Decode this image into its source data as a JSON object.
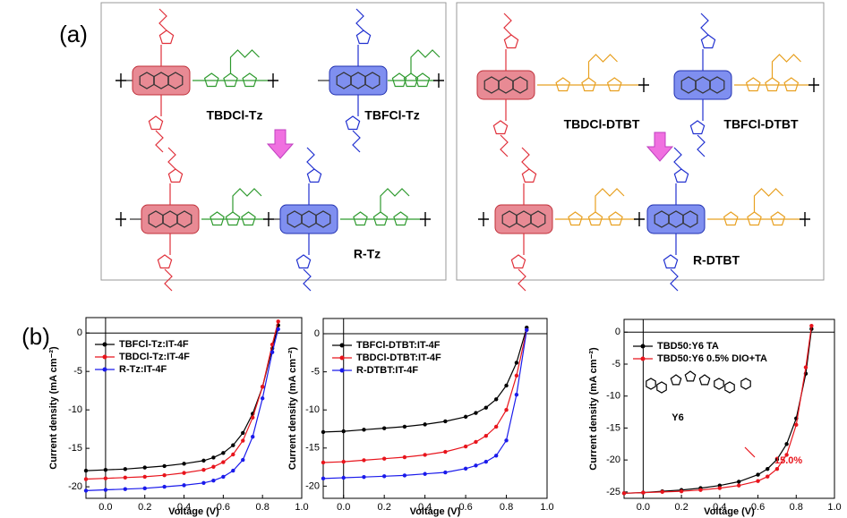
{
  "panel_labels": [
    "(a)",
    "(b)"
  ],
  "structures": [
    {
      "name": "TBDCl-Tz"
    },
    {
      "name": "TBFCl-Tz"
    },
    {
      "name": "R-Tz"
    },
    {
      "name": "TBDCl-DTBT"
    },
    {
      "name": "TBFCl-DTBT"
    },
    {
      "name": "R-DTBT"
    }
  ],
  "chart_data": [
    {
      "type": "line",
      "xlabel": "Voltage (V)",
      "ylabel": "Current density (mA cm⁻²)",
      "xlim": [
        -0.1,
        1.0
      ],
      "xticks": [
        {
          "value": 0,
          "label": "0.0"
        },
        0.2,
        0.4,
        0.6,
        0.8,
        {
          "value": 1,
          "label": "1.0"
        }
      ],
      "ylim": [
        -21.5,
        2
      ],
      "yticks": [
        0,
        -5,
        -10,
        -15,
        -20
      ],
      "zero_lines": true,
      "legend": "upper left",
      "x": [
        -0.1,
        0,
        0.1,
        0.2,
        0.3,
        0.4,
        0.5,
        0.55,
        0.6,
        0.65,
        0.7,
        0.75,
        0.8,
        0.85,
        0.88
      ],
      "series": [
        {
          "name": "TBFCl-Tz:IT-4F",
          "color": "#000000",
          "values": [
            -17.9,
            -17.8,
            -17.7,
            -17.5,
            -17.3,
            -17.0,
            -16.6,
            -16.2,
            -15.6,
            -14.6,
            -13.0,
            -10.5,
            -7.0,
            -2.0,
            1.0
          ]
        },
        {
          "name": "TBDCl-Tz:IT-4F",
          "color": "#e8141c",
          "values": [
            -19.0,
            -18.9,
            -18.8,
            -18.7,
            -18.5,
            -18.2,
            -17.8,
            -17.4,
            -16.8,
            -15.8,
            -14.0,
            -11.0,
            -7.0,
            -1.5,
            1.5
          ]
        },
        {
          "name": "R-Tz:IT-4F",
          "color": "#1a1aeb",
          "values": [
            -20.5,
            -20.4,
            -20.3,
            -20.2,
            -20.0,
            -19.8,
            -19.5,
            -19.2,
            -18.7,
            -17.9,
            -16.5,
            -13.5,
            -8.5,
            -2.5,
            0.5
          ]
        }
      ]
    },
    {
      "type": "line",
      "xlabel": "Voltage (V)",
      "ylabel": "Current density (mA cm⁻²)",
      "xlim": [
        -0.1,
        1.0
      ],
      "xticks": [
        {
          "value": 0,
          "label": "0.0"
        },
        0.2,
        0.4,
        0.6,
        0.8,
        {
          "value": 1,
          "label": "1.0"
        }
      ],
      "ylim": [
        -21.6,
        2
      ],
      "yticks": [
        0,
        -5,
        -10,
        -15,
        -20
      ],
      "zero_lines": true,
      "legend": "upper left",
      "x": [
        -0.1,
        0,
        0.1,
        0.2,
        0.3,
        0.4,
        0.5,
        0.6,
        0.65,
        0.7,
        0.75,
        0.8,
        0.85,
        0.9
      ],
      "series": [
        {
          "name": "TBFCl-DTBT:IT-4F",
          "color": "#000000",
          "values": [
            -12.9,
            -12.8,
            -12.6,
            -12.4,
            -12.2,
            -11.9,
            -11.5,
            -10.9,
            -10.4,
            -9.7,
            -8.6,
            -6.8,
            -3.8,
            0.8
          ]
        },
        {
          "name": "TBDCl-DTBT:IT-4F",
          "color": "#e8141c",
          "values": [
            -16.9,
            -16.8,
            -16.6,
            -16.4,
            -16.2,
            -15.9,
            -15.5,
            -14.8,
            -14.2,
            -13.4,
            -12.2,
            -10.0,
            -5.5,
            0.5
          ]
        },
        {
          "name": "R-DTBT:IT-4F",
          "color": "#1a1aeb",
          "values": [
            -19.0,
            -18.9,
            -18.8,
            -18.7,
            -18.6,
            -18.4,
            -18.2,
            -17.7,
            -17.3,
            -16.8,
            -16.0,
            -14.0,
            -8.0,
            0.5
          ]
        }
      ]
    },
    {
      "type": "line",
      "xlabel": "Voltage (V)",
      "ylabel": "Current density (mA cm⁻²)",
      "xlim": [
        -0.1,
        1.0
      ],
      "xticks": [
        {
          "value": 0,
          "label": "0.0"
        },
        0.2,
        0.4,
        0.6,
        0.8,
        {
          "value": 1,
          "label": "1.0"
        }
      ],
      "ylim": [
        -26,
        2
      ],
      "yticks": [
        0,
        -5,
        -10,
        -15,
        -20,
        -25
      ],
      "zero_lines": true,
      "legend": "upper left",
      "x": [
        -0.1,
        0,
        0.1,
        0.2,
        0.3,
        0.4,
        0.5,
        0.6,
        0.65,
        0.7,
        0.75,
        0.8,
        0.85,
        0.88
      ],
      "series": [
        {
          "name": "TBD50:Y6  TA",
          "color": "#000000",
          "values": [
            -25.2,
            -25.1,
            -24.9,
            -24.7,
            -24.4,
            -24.0,
            -23.4,
            -22.3,
            -21.4,
            -19.9,
            -17.5,
            -13.5,
            -6.5,
            0.5
          ]
        },
        {
          "name": "TBD50:Y6  0.5% DIO+TA",
          "color": "#e8141c",
          "values": [
            -25.2,
            -25.1,
            -25.0,
            -24.9,
            -24.7,
            -24.4,
            -24.0,
            -23.3,
            -22.6,
            -21.4,
            -19.2,
            -14.5,
            -5.5,
            1.0
          ]
        }
      ],
      "annotations": [
        {
          "text": "Y6",
          "color": "#000000"
        },
        {
          "text": "15.0%",
          "color": "#e8141c"
        }
      ]
    }
  ]
}
